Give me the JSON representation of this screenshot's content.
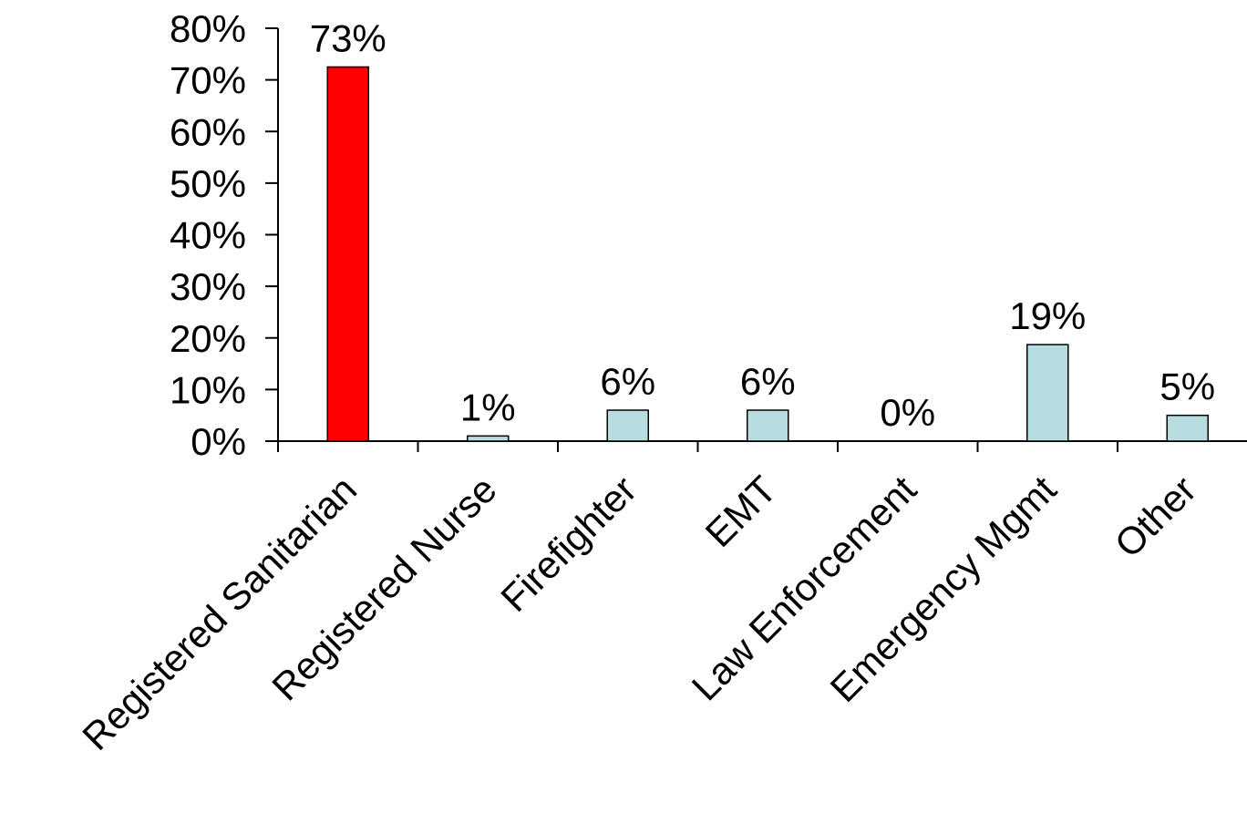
{
  "chart_data": {
    "type": "bar",
    "categories": [
      "Registered Sanitarian",
      "Registered Nurse",
      "Firefighter",
      "EMT",
      "Law Enforcement",
      "Emergency Mgmt",
      "Other"
    ],
    "values": [
      72.5,
      1,
      6,
      6,
      0,
      18.7,
      5
    ],
    "value_labels": [
      "73%",
      "1%",
      "6%",
      "6%",
      "0%",
      "19%",
      "5%"
    ],
    "highlight_index": 0,
    "colors": {
      "highlight": "#ff0000",
      "default": "#b8dde1",
      "outline": "#000000"
    },
    "ylim": [
      0,
      80
    ],
    "yticks": [
      0,
      10,
      20,
      30,
      40,
      50,
      60,
      70,
      80
    ],
    "ytick_labels": [
      "0%",
      "10%",
      "20%",
      "30%",
      "40%",
      "50%",
      "60%",
      "70%",
      "80%"
    ],
    "title": "",
    "xlabel": "",
    "ylabel": "",
    "legend": "none",
    "grid": false
  }
}
